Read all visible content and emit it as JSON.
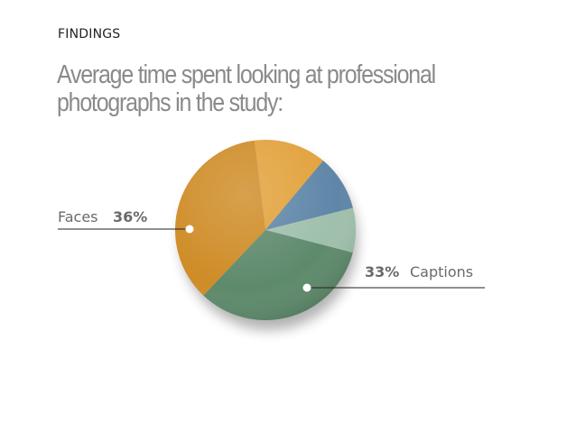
{
  "header": {
    "kicker": "FINDINGS",
    "title": "Average time spent looking at professional photographs in the study:"
  },
  "chart_data": {
    "type": "pie",
    "title": "Average time spent looking at professional photographs in the study:",
    "slices": [
      {
        "name": "",
        "value": 13,
        "color": "#e2a23c"
      },
      {
        "name": "",
        "value": 10,
        "color": "#5f86a8"
      },
      {
        "name": "",
        "value": 8,
        "color": "#9fc0ac"
      },
      {
        "name": "Captions",
        "value": 33,
        "label": "33%",
        "color": "#5e8a6c"
      },
      {
        "name": "Faces",
        "value": 36,
        "label": "36%",
        "color": "#cf8c27"
      }
    ],
    "start_angle_deg": -97
  }
}
